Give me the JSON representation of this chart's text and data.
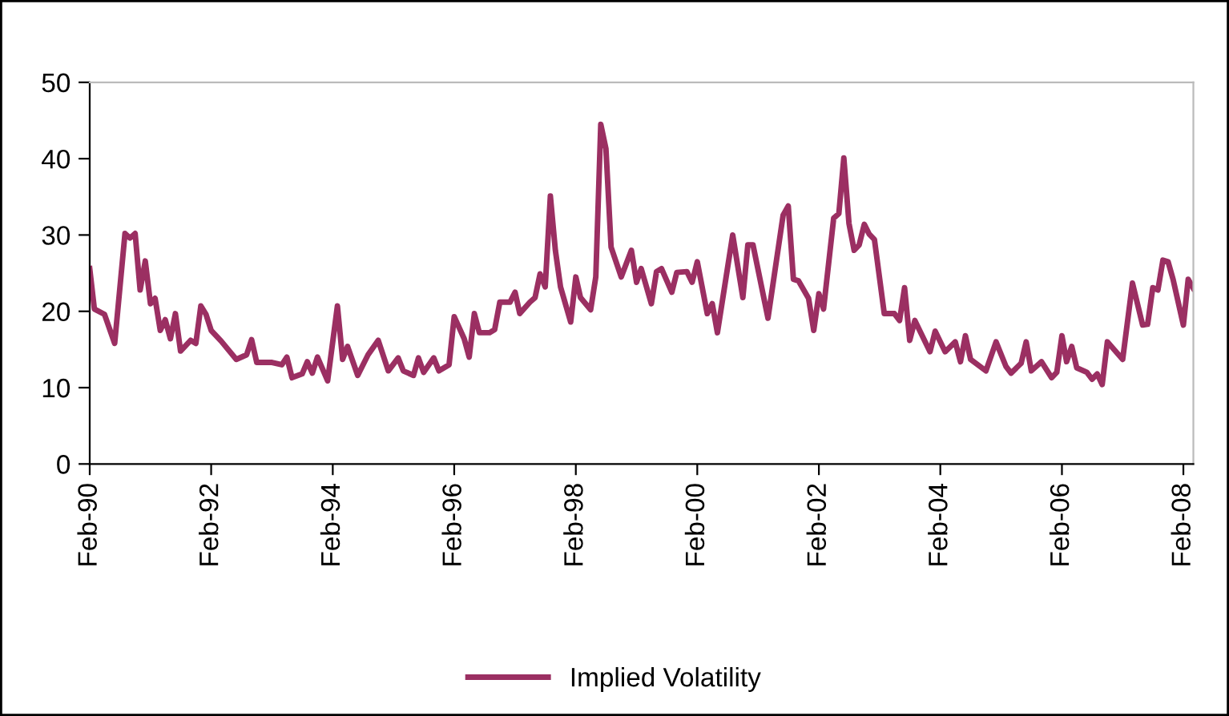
{
  "chart_data": {
    "type": "line",
    "xlim": [
      "1990-02",
      "2008-04"
    ],
    "ylim": [
      0,
      50
    ],
    "yticks": [
      0,
      10,
      20,
      30,
      40,
      50
    ],
    "xticks": [
      {
        "value": "1990-02",
        "label": "Feb-90"
      },
      {
        "value": "1992-02",
        "label": "Feb-92"
      },
      {
        "value": "1994-02",
        "label": "Feb-94"
      },
      {
        "value": "1996-02",
        "label": "Feb-96"
      },
      {
        "value": "1998-02",
        "label": "Feb-98"
      },
      {
        "value": "2000-02",
        "label": "Feb-00"
      },
      {
        "value": "2002-02",
        "label": "Feb-02"
      },
      {
        "value": "2004-02",
        "label": "Feb-04"
      },
      {
        "value": "2006-02",
        "label": "Feb-06"
      },
      {
        "value": "2008-02",
        "label": "Feb-08"
      }
    ],
    "grid": false,
    "legend": "bottom",
    "marker": "none",
    "line_style": "solid",
    "series": [
      {
        "name": "Implied Volatility",
        "color": "#9b2f62",
        "x": [
          "1990-02",
          "1990-03",
          "1990-05",
          "1990-07",
          "1990-09",
          "1990-10",
          "1990-11",
          "1990-12",
          "1991-01",
          "1991-02",
          "1991-03",
          "1991-04",
          "1991-05",
          "1991-06",
          "1991-07",
          "1991-08",
          "1991-10",
          "1991-11",
          "1991-12",
          "1992-01",
          "1992-02",
          "1992-04",
          "1992-07",
          "1992-09",
          "1992-10",
          "1992-11",
          "1993-02",
          "1993-04",
          "1993-05",
          "1993-06",
          "1993-08",
          "1993-09",
          "1993-10",
          "1993-11",
          "1994-01",
          "1994-03",
          "1994-04",
          "1994-05",
          "1994-07",
          "1994-09",
          "1994-11",
          "1995-01",
          "1995-03",
          "1995-04",
          "1995-06",
          "1995-07",
          "1995-08",
          "1995-10",
          "1995-11",
          "1996-01",
          "1996-02",
          "1996-04",
          "1996-05",
          "1996-06",
          "1996-07",
          "1996-09",
          "1996-10",
          "1996-11",
          "1997-01",
          "1997-02",
          "1997-03",
          "1997-05",
          "1997-06",
          "1997-07",
          "1997-08",
          "1997-09",
          "1997-10",
          "1997-11",
          "1998-01",
          "1998-02",
          "1998-03",
          "1998-05",
          "1998-06",
          "1998-07",
          "1998-08",
          "1998-09",
          "1998-11",
          "1999-01",
          "1999-02",
          "1999-03",
          "1999-05",
          "1999-06",
          "1999-07",
          "1999-09",
          "1999-10",
          "1999-12",
          "2000-01",
          "2000-02",
          "2000-04",
          "2000-05",
          "2000-06",
          "2000-09",
          "2000-11",
          "2000-12",
          "2001-01",
          "2001-04",
          "2001-07",
          "2001-08",
          "2001-09",
          "2001-10",
          "2001-12",
          "2002-01",
          "2002-02",
          "2002-03",
          "2002-05",
          "2002-06",
          "2002-07",
          "2002-08",
          "2002-09",
          "2002-10",
          "2002-11",
          "2002-12",
          "2003-01",
          "2003-03",
          "2003-05",
          "2003-06",
          "2003-07",
          "2003-08",
          "2003-09",
          "2003-12",
          "2004-01",
          "2004-03",
          "2004-05",
          "2004-06",
          "2004-07",
          "2004-08",
          "2004-11",
          "2005-01",
          "2005-03",
          "2005-04",
          "2005-06",
          "2005-07",
          "2005-08",
          "2005-10",
          "2005-12",
          "2006-01",
          "2006-02",
          "2006-03",
          "2006-04",
          "2006-05",
          "2006-07",
          "2006-08",
          "2006-09",
          "2006-10",
          "2006-11",
          "2007-02",
          "2007-04",
          "2007-06",
          "2007-07",
          "2007-08",
          "2007-09",
          "2007-10",
          "2007-11",
          "2007-12",
          "2008-02",
          "2008-03",
          "2008-04"
        ],
        "values": [
          25.6,
          20.3,
          19.6,
          15.8,
          30.2,
          29.6,
          30.2,
          22.8,
          26.6,
          21.0,
          21.7,
          17.5,
          18.9,
          16.4,
          19.7,
          14.8,
          16.2,
          15.8,
          20.7,
          19.6,
          17.5,
          16.1,
          13.7,
          14.3,
          16.3,
          13.3,
          13.3,
          13.0,
          14.0,
          11.3,
          11.8,
          13.4,
          11.9,
          14.0,
          10.9,
          20.7,
          13.7,
          15.4,
          11.6,
          14.3,
          16.2,
          12.2,
          13.9,
          12.2,
          11.6,
          13.9,
          12.0,
          13.9,
          12.2,
          13.0,
          19.3,
          16.4,
          14.0,
          19.7,
          17.2,
          17.2,
          17.6,
          21.2,
          21.2,
          22.5,
          19.7,
          21.2,
          21.8,
          24.9,
          23.2,
          35.1,
          28.0,
          23.2,
          18.6,
          24.5,
          21.8,
          20.2,
          24.5,
          44.5,
          41.3,
          28.4,
          24.5,
          28.0,
          23.8,
          25.6,
          21.0,
          25.2,
          25.6,
          22.5,
          25.1,
          25.2,
          23.8,
          26.5,
          19.7,
          21.0,
          17.2,
          30.0,
          21.8,
          28.7,
          28.7,
          19.1,
          32.6,
          33.8,
          24.2,
          24.0,
          21.7,
          17.5,
          22.3,
          20.3,
          32.2,
          32.8,
          40.1,
          31.5,
          28.0,
          28.7,
          31.4,
          30.1,
          29.4,
          19.7,
          19.7,
          18.8,
          23.1,
          16.2,
          18.8,
          14.7,
          17.4,
          14.7,
          16.0,
          13.4,
          16.8,
          13.7,
          12.2,
          16.0,
          12.8,
          11.9,
          13.2,
          16.0,
          12.2,
          13.4,
          11.3,
          12.0,
          16.8,
          13.4,
          15.4,
          12.6,
          12.0,
          11.1,
          11.8,
          10.4,
          16.0,
          13.7,
          23.7,
          18.2,
          18.3,
          23.1,
          22.8,
          26.7,
          26.5,
          24.2,
          18.2,
          24.2,
          23.0
        ]
      }
    ]
  }
}
